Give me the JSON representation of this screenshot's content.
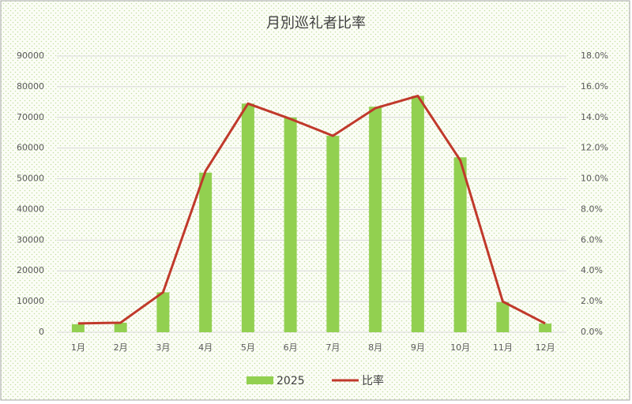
{
  "chart_data": {
    "type": "bar-line",
    "title": "月別巡礼者比率",
    "categories": [
      "1月",
      "2月",
      "3月",
      "4月",
      "5月",
      "6月",
      "7月",
      "8月",
      "9月",
      "10月",
      "11月",
      "12月"
    ],
    "series": [
      {
        "name": "2025",
        "type": "bar",
        "color": "#92d050",
        "values": [
          2600,
          3100,
          13000,
          52000,
          74500,
          70000,
          64000,
          73500,
          77000,
          57000,
          9800,
          2800
        ]
      },
      {
        "name": "比率",
        "type": "line",
        "axis": "y2",
        "color": "#c0392b",
        "values": [
          0.57,
          0.62,
          2.6,
          10.5,
          14.9,
          13.9,
          12.8,
          14.6,
          15.4,
          11.2,
          2.0,
          0.57
        ]
      }
    ],
    "ylim": [
      0,
      90000
    ],
    "yticks": [
      0,
      10000,
      20000,
      30000,
      40000,
      50000,
      60000,
      70000,
      80000,
      90000
    ],
    "y2lim": [
      0,
      18
    ],
    "y2ticks": [
      {
        "value": 0,
        "label": "0.0%"
      },
      {
        "value": 2,
        "label": "2.0%"
      },
      {
        "value": 4,
        "label": "4.0%"
      },
      {
        "value": 6,
        "label": "6.0%"
      },
      {
        "value": 8,
        "label": "8.0%"
      },
      {
        "value": 10,
        "label": "10.0%"
      },
      {
        "value": 12,
        "label": "12.0%"
      },
      {
        "value": 14,
        "label": "14.0%"
      },
      {
        "value": 16,
        "label": "16.0%"
      },
      {
        "value": 18,
        "label": "18.0%"
      }
    ],
    "grid": true,
    "legend": "bottom"
  }
}
